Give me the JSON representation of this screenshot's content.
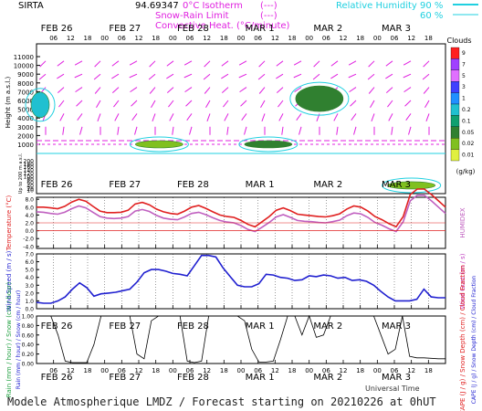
{
  "header": {
    "site": "SIRTA",
    "coords": "94.69347",
    "legend_lines": [
      "0°C Isotherm",
      "Snow-Rain Limit",
      "Convective Heat. (°C/minute)"
    ],
    "legend_markers": [
      "(---)",
      "(---)",
      "(——)"
    ],
    "rh_label": "Relative Humidity",
    "rh_levels": [
      "90 %",
      "60 %"
    ],
    "colors": {
      "magenta": "#e020e0",
      "cyan": "#20d0e0",
      "red": "#e02020",
      "blue": "#2020d0"
    }
  },
  "footer": {
    "text": "Modele Atmospherique LMDZ / Forecast starting on 20210226 at 0hUT"
  },
  "universal_time_label": "Universal Time",
  "chart_data": [
    {
      "type": "heatmap",
      "title": "",
      "ylabel": "Height (m a.s.l.)",
      "ylabel2": "Up to 200 m a.s.l.",
      "yticks_upper": [
        "11000",
        "10000",
        "9000",
        "8000",
        "7000",
        "6000",
        "5000",
        "4000",
        "3000",
        "2000",
        "1000"
      ],
      "yticks_lower": [
        "200",
        "180",
        "160",
        "140",
        "120",
        "100",
        "80",
        "60",
        "40",
        "20",
        "10"
      ],
      "x_day_labels": [
        "FEB 26",
        "FEB 27",
        "FEB 28",
        "MAR 1",
        "MAR 2",
        "MAR 3"
      ],
      "x_hour_labels": [
        "06",
        "12",
        "18",
        "00",
        "06",
        "12",
        "18",
        "00",
        "06",
        "12",
        "18",
        "00",
        "06",
        "12",
        "18",
        "00",
        "06",
        "12",
        "18",
        "00",
        "06",
        "12",
        "18"
      ],
      "colorbar": {
        "title": "Clouds",
        "unit": "(g/kg)",
        "levels": [
          "9",
          "7",
          "5",
          "3",
          "1",
          "0.2",
          "0.1",
          "0.05",
          "0.02",
          "0.01"
        ],
        "colors": [
          "#ff2020",
          "#a040ff",
          "#e070ff",
          "#4040ff",
          "#2090ff",
          "#20c0d0",
          "#10a070",
          "#308030",
          "#80c020",
          "#e0f040"
        ]
      },
      "clouds": [
        {
          "day": 0.0,
          "height": 5500,
          "level": "0.2"
        },
        {
          "day": 4.15,
          "height": 6200,
          "level": "0.05"
        },
        {
          "day": 1.8,
          "height": 1000,
          "level": "0.02"
        },
        {
          "day": 3.4,
          "height": 1000,
          "level": "0.05"
        },
        {
          "day": 5.5,
          "height": 40,
          "level": "0.02"
        }
      ],
      "winds": [
        {
          "height": 10500,
          "dir_deg": 225
        },
        {
          "height": 9000,
          "dir_deg": 230
        },
        {
          "height": 7500,
          "dir_deg": 220
        },
        {
          "height": 6000,
          "dir_deg": 210
        },
        {
          "height": 4500,
          "dir_deg": 200
        },
        {
          "height": 3000,
          "dir_deg": 180
        }
      ]
    },
    {
      "type": "line",
      "title": "",
      "ylabel": "Temperature (°C)",
      "ylabel2": "HUMIDEX",
      "yticks": [
        "8.0",
        "6.0",
        "4.0",
        "2.0",
        "0.0",
        "-2.0",
        "-4.0"
      ],
      "ylim": [
        -4.5,
        8.5
      ],
      "x_day_labels": [
        "FEB 26",
        "FEB 27",
        "FEB 28",
        "MAR 1",
        "MAR 2",
        "MAR 3"
      ],
      "series": [
        {
          "color": "#e02020",
          "values": [
            6.0,
            6.0,
            5.8,
            5.6,
            6.2,
            7.3,
            8.0,
            7.5,
            6.2,
            5.0,
            4.6,
            4.6,
            4.7,
            5.2,
            6.8,
            7.2,
            6.6,
            5.5,
            4.8,
            4.4,
            4.2,
            5.0,
            6.0,
            6.4,
            5.7,
            4.8,
            4.0,
            3.6,
            3.4,
            2.6,
            1.6,
            1.0,
            2.3,
            3.6,
            5.2,
            5.8,
            5.1,
            4.2,
            4.0,
            3.8,
            3.6,
            3.5,
            3.8,
            4.3,
            5.5,
            6.3,
            6.0,
            5.0,
            3.6,
            2.8,
            1.8,
            1.0,
            3.6,
            9.2,
            10.6,
            10.6,
            9.2,
            7.6,
            6.0
          ]
        },
        {
          "color": "#c060c0",
          "values": [
            4.8,
            4.7,
            4.4,
            4.2,
            4.7,
            5.6,
            6.3,
            5.8,
            4.7,
            3.6,
            3.2,
            3.1,
            3.2,
            3.6,
            5.0,
            5.4,
            4.9,
            3.9,
            3.2,
            2.9,
            2.8,
            3.5,
            4.4,
            4.7,
            4.1,
            3.3,
            2.6,
            2.2,
            2.0,
            1.3,
            0.3,
            -0.2,
            0.9,
            2.1,
            3.5,
            4.1,
            3.4,
            2.6,
            2.4,
            2.3,
            2.1,
            2.0,
            2.3,
            2.7,
            3.8,
            4.5,
            4.3,
            3.4,
            2.1,
            1.4,
            0.5,
            -0.2,
            2.3,
            7.6,
            9.0,
            9.0,
            7.6,
            6.0,
            4.4
          ]
        }
      ]
    },
    {
      "type": "line",
      "title": "",
      "ylabel": "Wind Speed (m / s)",
      "ylabel2": "Wind Gust (m / s)",
      "yticks": [
        "7.0",
        "6.0",
        "5.0",
        "4.0",
        "3.0",
        "2.0",
        "1.0",
        "0.0"
      ],
      "ylim": [
        0,
        7
      ],
      "x_day_labels": [
        "FEB 26",
        "FEB 27",
        "FEB 28",
        "MAR 1",
        "MAR 2",
        "MAR 3"
      ],
      "series": [
        {
          "color": "#2020d0",
          "values": [
            0.8,
            0.7,
            0.7,
            1.0,
            1.5,
            2.5,
            3.3,
            2.7,
            1.6,
            1.9,
            2.0,
            2.1,
            2.3,
            2.5,
            3.4,
            4.6,
            5.0,
            5.0,
            4.8,
            4.5,
            4.4,
            4.2,
            5.5,
            6.8,
            6.8,
            6.6,
            5.2,
            4.1,
            3.0,
            2.8,
            2.8,
            3.2,
            4.4,
            4.3,
            4.0,
            3.9,
            3.6,
            3.7,
            4.2,
            4.1,
            4.3,
            4.2,
            3.9,
            4.0,
            3.6,
            3.7,
            3.5,
            3.0,
            2.2,
            1.5,
            1.0,
            1.0,
            1.0,
            1.2,
            2.5,
            1.5,
            1.4,
            1.4
          ]
        }
      ]
    },
    {
      "type": "line",
      "title": "",
      "ylabel": "Rain (mm / hour) / Snow (cm / hour)",
      "ylabel2": "CAPE (J / g) / Snow Depth (cm) / Cloud Fraction",
      "yticks": [
        "1.00",
        "0.80",
        "0.60",
        "0.40",
        "0.20",
        "0.00"
      ],
      "ylim": [
        0,
        1
      ],
      "x_day_labels": [
        "FEB 26",
        "FEB 27",
        "FEB 28",
        "MAR 1",
        "MAR 2",
        "MAR 3"
      ],
      "hour_labels": [
        "06",
        "12",
        "18",
        "00",
        "06",
        "12",
        "18",
        "00",
        "06",
        "12",
        "18",
        "00",
        "06",
        "12",
        "18",
        "00",
        "06",
        "12",
        "18",
        "00",
        "06",
        "12",
        "18"
      ],
      "series": [
        {
          "color": "#000000",
          "values": [
            1.0,
            1.0,
            1.0,
            0.6,
            0.05,
            0.02,
            0.02,
            0.02,
            0.4,
            1.0,
            1.0,
            1.0,
            1.0,
            1.0,
            0.2,
            0.1,
            0.9,
            1.0,
            1.0,
            1.0,
            1.0,
            0.05,
            0.02,
            0.05,
            1.0,
            1.0,
            1.0,
            1.0,
            1.0,
            0.9,
            0.3,
            0.03,
            0.03,
            0.05,
            0.5,
            1.0,
            1.0,
            0.6,
            1.0,
            0.55,
            0.6,
            1.0,
            1.0,
            1.0,
            1.0,
            1.0,
            1.0,
            1.0,
            0.6,
            0.2,
            0.3,
            1.0,
            0.15,
            0.12,
            0.12,
            0.11,
            0.1,
            0.1
          ]
        }
      ]
    }
  ]
}
